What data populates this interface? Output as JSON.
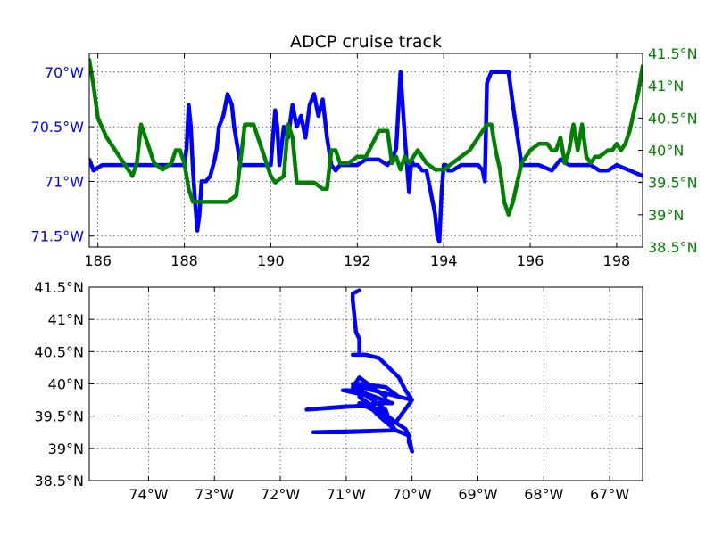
{
  "chart_data": [
    {
      "type": "line",
      "title": "ADCP cruise track",
      "xlabel": "",
      "xlim": [
        185.8,
        198.6
      ],
      "x_ticks": [
        186,
        188,
        190,
        192,
        194,
        196,
        198
      ],
      "grid": true,
      "y_left": {
        "color": "#0000ff",
        "inverted": true,
        "lim": [
          69.83,
          71.6
        ],
        "ticks": [
          {
            "value": 70.0,
            "label": "70°W"
          },
          {
            "value": 70.5,
            "label": "70.5°W"
          },
          {
            "value": 71.0,
            "label": "71°W"
          },
          {
            "value": 71.5,
            "label": "71.5°W"
          }
        ]
      },
      "y_right": {
        "color": "#008000",
        "lim": [
          38.5,
          41.5
        ],
        "ticks": [
          {
            "value": 38.5,
            "label": "38.5°N"
          },
          {
            "value": 39.0,
            "label": "39°N"
          },
          {
            "value": 39.5,
            "label": "39.5°N"
          },
          {
            "value": 40.0,
            "label": "40°N"
          },
          {
            "value": 40.5,
            "label": "40.5°N"
          },
          {
            "value": 41.0,
            "label": "41°N"
          },
          {
            "value": 41.5,
            "label": "41.5°N"
          }
        ]
      },
      "series": [
        {
          "axis": "left",
          "color": "#0000ff",
          "x": [
            185.8,
            185.9,
            186.1,
            186.3,
            186.6,
            186.8,
            186.9,
            187.1,
            187.2,
            187.4,
            187.6,
            187.8,
            187.9,
            188.0,
            188.05,
            188.1,
            188.15,
            188.2,
            188.25,
            188.3,
            188.35,
            188.4,
            188.5,
            188.6,
            188.7,
            188.75,
            188.8,
            188.9,
            189.0,
            189.1,
            189.15,
            189.3,
            189.4,
            189.5,
            189.6,
            189.8,
            190.0,
            190.1,
            190.15,
            190.2,
            190.3,
            190.4,
            190.5,
            190.6,
            190.7,
            190.8,
            190.9,
            191.0,
            191.1,
            191.2,
            191.3,
            191.4,
            191.5,
            191.6,
            191.7,
            191.8,
            191.9,
            192.0,
            192.2,
            192.5,
            192.7,
            192.8,
            192.9,
            193.0,
            193.05,
            193.1,
            193.2,
            193.25,
            193.3,
            193.4,
            193.5,
            193.6,
            193.7,
            193.8,
            193.85,
            193.9,
            193.95,
            194.0,
            194.05,
            194.1,
            194.2,
            194.4,
            194.6,
            194.8,
            194.9,
            194.95,
            195.0,
            195.1,
            195.2,
            195.3,
            195.4,
            195.5,
            195.6,
            195.8,
            196.0,
            196.2,
            196.5,
            196.7,
            196.9,
            197.0,
            197.2,
            197.4,
            197.6,
            197.8,
            198.0,
            198.3,
            198.6
          ],
          "y": [
            70.8,
            70.9,
            70.85,
            70.85,
            70.85,
            70.85,
            70.85,
            70.85,
            70.85,
            70.85,
            70.85,
            70.85,
            70.85,
            70.85,
            70.7,
            70.3,
            70.5,
            70.9,
            71.2,
            71.45,
            71.3,
            71.0,
            71.0,
            70.95,
            70.8,
            70.7,
            70.5,
            70.4,
            70.2,
            70.3,
            70.5,
            70.85,
            70.85,
            70.85,
            70.85,
            70.85,
            70.85,
            70.35,
            70.5,
            70.85,
            70.5,
            70.6,
            70.3,
            70.5,
            70.4,
            70.6,
            70.3,
            70.2,
            70.4,
            70.25,
            70.6,
            70.85,
            70.9,
            70.85,
            70.85,
            70.85,
            70.85,
            70.85,
            70.8,
            70.8,
            70.85,
            70.8,
            70.7,
            70.0,
            70.3,
            70.6,
            71.1,
            70.8,
            70.85,
            70.85,
            70.9,
            70.9,
            71.1,
            71.3,
            71.5,
            71.55,
            71.1,
            70.85,
            70.85,
            70.9,
            70.9,
            70.85,
            70.85,
            70.85,
            70.9,
            71.0,
            70.1,
            70.0,
            70.0,
            70.0,
            70.0,
            70.0,
            70.3,
            70.85,
            70.85,
            70.85,
            70.9,
            70.8,
            70.85,
            70.85,
            70.85,
            70.85,
            70.9,
            70.9,
            70.85,
            70.9,
            70.95
          ]
        },
        {
          "axis": "right",
          "color": "#008000",
          "x": [
            185.8,
            185.9,
            186.0,
            186.2,
            186.4,
            186.6,
            186.8,
            186.9,
            187.0,
            187.1,
            187.3,
            187.5,
            187.7,
            187.8,
            187.9,
            188.0,
            188.1,
            188.2,
            188.4,
            188.6,
            188.8,
            189.0,
            189.2,
            189.4,
            189.6,
            189.8,
            190.0,
            190.1,
            190.3,
            190.4,
            190.5,
            190.6,
            190.7,
            190.8,
            190.9,
            191.0,
            191.2,
            191.3,
            191.4,
            191.5,
            191.6,
            191.8,
            192.0,
            192.2,
            192.5,
            192.7,
            192.8,
            192.9,
            193.0,
            193.1,
            193.2,
            193.4,
            193.6,
            193.8,
            194.0,
            194.2,
            194.4,
            194.6,
            194.8,
            195.0,
            195.1,
            195.2,
            195.3,
            195.4,
            195.5,
            195.6,
            195.8,
            196.0,
            196.2,
            196.4,
            196.5,
            196.6,
            196.7,
            196.8,
            196.9,
            197.0,
            197.1,
            197.2,
            197.3,
            197.4,
            197.5,
            197.6,
            197.8,
            197.9,
            198.0,
            198.1,
            198.2,
            198.3,
            198.4,
            198.5,
            198.6
          ],
          "y": [
            41.4,
            41.0,
            40.5,
            40.2,
            40.0,
            39.8,
            39.6,
            39.8,
            40.4,
            40.2,
            39.8,
            39.7,
            39.8,
            40.0,
            40.0,
            39.8,
            39.4,
            39.2,
            39.2,
            39.2,
            39.2,
            39.2,
            39.3,
            40.4,
            40.4,
            40.0,
            39.6,
            39.5,
            39.6,
            40.4,
            40.2,
            39.5,
            39.5,
            39.5,
            39.5,
            39.5,
            39.4,
            39.4,
            40.0,
            40.0,
            39.8,
            39.8,
            39.9,
            39.9,
            40.3,
            40.3,
            39.8,
            39.9,
            39.7,
            39.9,
            39.8,
            40.0,
            39.8,
            39.7,
            39.7,
            39.8,
            39.9,
            40.0,
            40.2,
            40.4,
            40.4,
            40.0,
            39.7,
            39.2,
            39.0,
            39.2,
            39.8,
            40.0,
            40.1,
            40.1,
            40.0,
            40.0,
            40.2,
            39.8,
            40.0,
            40.4,
            40.0,
            40.4,
            39.9,
            39.8,
            39.9,
            39.9,
            40.0,
            40.0,
            40.1,
            40.0,
            40.1,
            40.3,
            40.6,
            40.9,
            41.3
          ]
        }
      ]
    },
    {
      "type": "line",
      "title": "",
      "xlabel": "",
      "ylabel": "",
      "xlim": [
        -74.9,
        -66.5
      ],
      "ylim": [
        38.5,
        41.5
      ],
      "grid": true,
      "x_ticks": [
        {
          "value": -74,
          "label": "74°W"
        },
        {
          "value": -73,
          "label": "73°W"
        },
        {
          "value": -72,
          "label": "72°W"
        },
        {
          "value": -71,
          "label": "71°W"
        },
        {
          "value": -70,
          "label": "70°W"
        },
        {
          "value": -69,
          "label": "69°W"
        },
        {
          "value": -68,
          "label": "68°W"
        },
        {
          "value": -67,
          "label": "67°W"
        }
      ],
      "y_ticks": [
        {
          "value": 38.5,
          "label": "38.5°N"
        },
        {
          "value": 39.0,
          "label": "39°N"
        },
        {
          "value": 39.5,
          "label": "39.5°N"
        },
        {
          "value": 40.0,
          "label": "40°N"
        },
        {
          "value": 40.5,
          "label": "40.5°N"
        },
        {
          "value": 41.0,
          "label": "41°N"
        },
        {
          "value": 41.5,
          "label": "41.5°N"
        }
      ],
      "series": [
        {
          "color": "#0000ff",
          "x": [
            -70.8,
            -70.9,
            -70.9,
            -70.85,
            -70.8,
            -70.8,
            -70.75,
            -70.75,
            -70.9,
            -70.7,
            -70.5,
            -70.2,
            -70.1,
            -70.0,
            -70.2,
            -70.4,
            -70.8,
            -70.9,
            -71.05,
            -70.6,
            -70.3,
            -70.5,
            -70.9,
            -71.6,
            -71.0,
            -70.7,
            -70.5,
            -70.3,
            -70.8,
            -70.4,
            -70.25,
            -71.5,
            -71.0,
            -70.25,
            -70.5,
            -70.8,
            -70.25,
            -70.1,
            -70.05,
            -70.05,
            -70.0,
            -70.05,
            -70.3,
            -70.4,
            -70.6,
            -70.9,
            -70.8,
            -70.4,
            -70.5,
            -70.25,
            -70.0,
            -70.6,
            -70.9,
            -70.7,
            -70.3
          ],
          "y": [
            41.45,
            41.4,
            41.3,
            40.8,
            40.7,
            40.45,
            40.45,
            40.45,
            40.45,
            40.45,
            40.4,
            40.1,
            39.9,
            39.75,
            39.8,
            39.95,
            40.0,
            39.9,
            39.9,
            39.8,
            39.7,
            39.7,
            39.65,
            39.6,
            39.65,
            39.65,
            39.55,
            39.45,
            39.7,
            39.5,
            39.28,
            39.25,
            39.25,
            39.28,
            39.5,
            39.8,
            39.4,
            39.3,
            39.2,
            39.1,
            38.95,
            39.2,
            39.3,
            39.6,
            39.75,
            39.95,
            40.1,
            39.8,
            39.6,
            39.4,
            39.75,
            39.9,
            40.0,
            39.85,
            39.7
          ]
        }
      ]
    }
  ]
}
